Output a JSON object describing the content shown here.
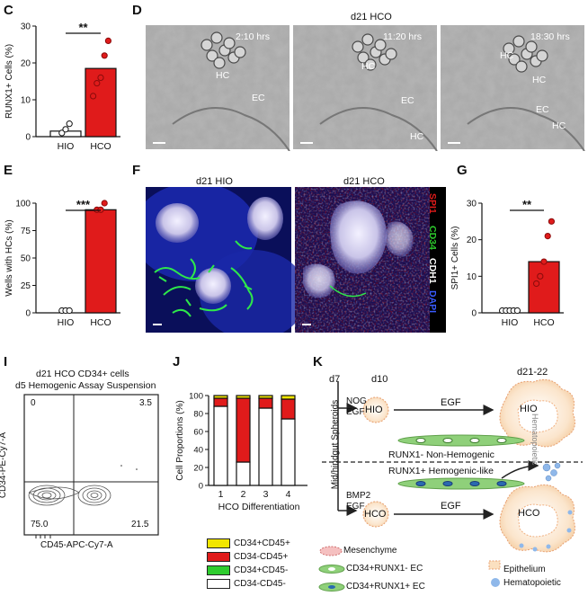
{
  "panels": {
    "C": "C",
    "D": "D",
    "E": "E",
    "F": "F",
    "G": "G",
    "I": "I",
    "J": "J",
    "K": "K"
  },
  "colors": {
    "hco_red": "#e01b1b",
    "hio_white": "#ffffff",
    "yellow": "#f2e600",
    "green": "#2ecc2e"
  },
  "D": {
    "title": "d21 HCO",
    "frames": [
      {
        "time": "2:10 hrs",
        "labels": [
          "HC",
          "EC"
        ]
      },
      {
        "time": "11:20 hrs",
        "labels": [
          "HC",
          "EC",
          "HC"
        ]
      },
      {
        "time": "18:30 hrs",
        "labels": [
          "HC",
          "HC",
          "EC",
          "HC"
        ]
      }
    ]
  },
  "F": {
    "left_title": "d21 HIO",
    "right_title": "d21 HCO",
    "stain_labels": [
      {
        "text": "SPI1",
        "color": "#e01b1b"
      },
      {
        "text": "CD34",
        "color": "#2ecc2e"
      },
      {
        "text": "CDH1",
        "color": "#ffffff"
      },
      {
        "text": "DAPI",
        "color": "#3a5bff"
      }
    ]
  },
  "I": {
    "title_line1": "d21 HCO CD34+ cells",
    "title_line2": "d5 Hemogenic Assay Suspension",
    "ylabel": "CD34-PE-Cy7-A",
    "xlabel": "CD45-APC-Cy7-A",
    "quadrants": {
      "tl": "0",
      "tr": "3.5",
      "bl": "75.0",
      "br": "21.5"
    }
  },
  "K": {
    "d7": "d7",
    "d10": "d10",
    "d21": "d21-22",
    "spheroids": "Mid/hindgut Spheroids",
    "nog": "NOG",
    "egf1": "EGF",
    "bmp2": "BMP2",
    "egf2": "EGF",
    "egf_top": "EGF",
    "egf_bottom": "EGF",
    "hio": "HIO",
    "hco": "HCO",
    "hio_big": "HIO",
    "hco_big": "HCO",
    "non_hemogenic": "RUNX1- Non-Hemogenic",
    "hemogenic_like": "RUNX1+ Hemogenic-like",
    "legend": {
      "mesenchyme": "Mesenchyme",
      "runx1_neg": "CD34+RUNX1- EC",
      "runx1_pos": "CD34+RUNX1+ EC",
      "epithelium": "Epithelium",
      "hematopoietic": "Hematopoietic"
    },
    "cutoff_right": "Hematopoietic"
  },
  "chart_data": [
    {
      "panel": "C",
      "type": "bar",
      "categories": [
        "HIO",
        "HCO"
      ],
      "values": [
        1.5,
        18.5
      ],
      "points": [
        [
          1,
          2,
          3.5
        ],
        [
          11,
          14.5,
          16,
          22,
          26
        ]
      ],
      "ylabel": "RUNX1+ Cells (%)",
      "ylim": [
        0,
        30
      ],
      "yticks": [
        "0",
        "10",
        "20",
        "30"
      ],
      "significance": "**"
    },
    {
      "panel": "E",
      "type": "bar",
      "categories": [
        "HIO",
        "HCO"
      ],
      "values": [
        0,
        94
      ],
      "points": [
        [
          0,
          0,
          0
        ],
        [
          94,
          94,
          100
        ]
      ],
      "ylabel": "Wells with HCs (%)",
      "ylim": [
        0,
        100
      ],
      "yticks": [
        "0",
        "25",
        "50",
        "75",
        "100"
      ],
      "significance": "***"
    },
    {
      "panel": "G",
      "type": "bar",
      "categories": [
        "HIO",
        "HCO"
      ],
      "values": [
        0,
        14
      ],
      "points": [
        [
          0,
          0,
          0,
          0,
          0
        ],
        [
          8,
          10,
          14,
          21,
          25
        ]
      ],
      "ylabel": "SPI1+ Cells (%)",
      "ylim": [
        0,
        30
      ],
      "yticks": [
        "0",
        "10",
        "20",
        "30"
      ],
      "significance": "**"
    },
    {
      "panel": "J",
      "type": "bar",
      "stacked": true,
      "categories": [
        "1",
        "2",
        "3",
        "4"
      ],
      "xlabel": "HCO Differentiation",
      "ylabel": "Cell Proportions (%)",
      "ylim": [
        0,
        100
      ],
      "yticks": [
        "0",
        "20",
        "40",
        "60",
        "80",
        "100"
      ],
      "series": [
        {
          "name": "CD34-CD45-",
          "color": "#ffffff",
          "values": [
            88,
            26,
            86,
            74
          ]
        },
        {
          "name": "CD34+CD45-",
          "color": "#2ecc2e",
          "values": [
            0,
            0,
            0,
            0
          ]
        },
        {
          "name": "CD34-CD45+",
          "color": "#e01b1b",
          "values": [
            9,
            71,
            11,
            22
          ]
        },
        {
          "name": "CD34+CD45+",
          "color": "#f2e600",
          "values": [
            3,
            3,
            3,
            4
          ]
        }
      ],
      "legend_order": [
        "CD34+CD45+",
        "CD34-CD45+",
        "CD34+CD45-",
        "CD34-CD45-"
      ]
    }
  ]
}
